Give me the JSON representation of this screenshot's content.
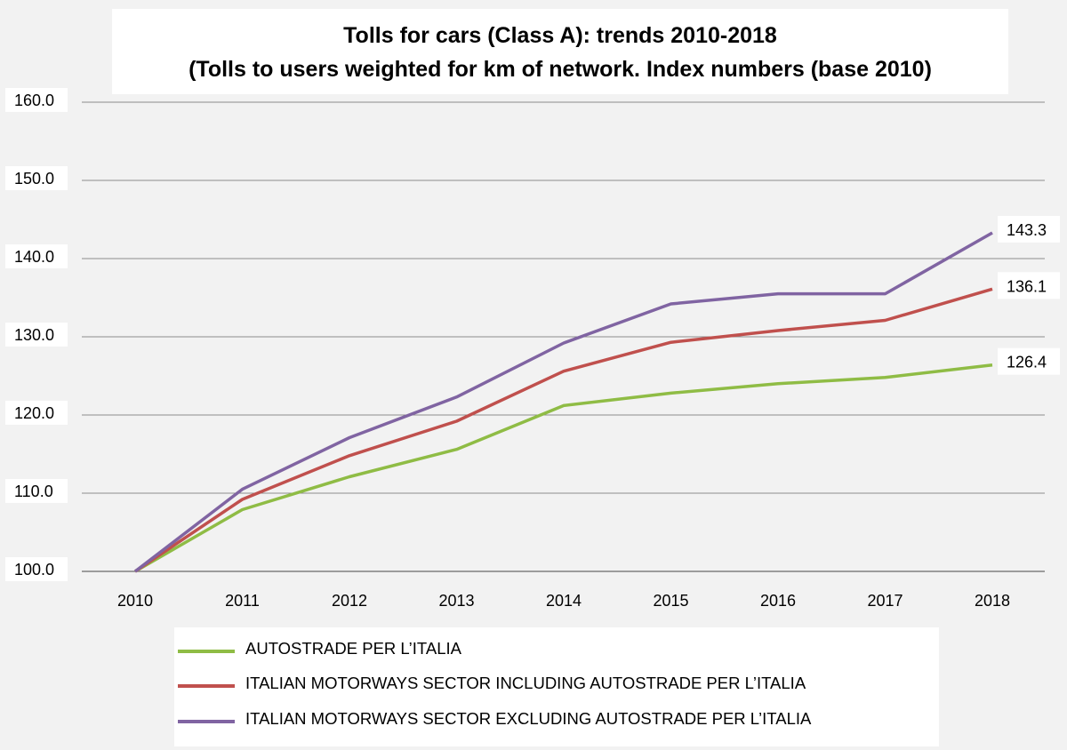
{
  "chart_data": {
    "type": "line",
    "title": "Tolls for cars (Class A): trends 2010-2018",
    "subtitle": "(Tolls to users weighted for km of network. Index numbers (base 2010)",
    "x": [
      "2010",
      "2011",
      "2012",
      "2013",
      "2014",
      "2015",
      "2016",
      "2017",
      "2018"
    ],
    "ylim": [
      100,
      160
    ],
    "yticks": [
      "100.0",
      "110.0",
      "120.0",
      "130.0",
      "140.0",
      "150.0",
      "160.0"
    ],
    "grid": true,
    "legend_position": "bottom",
    "series": [
      {
        "name": "AUTOSTRADE PER L’ITALIA",
        "color": "#8fbc45",
        "values": [
          100.0,
          107.9,
          112.1,
          115.6,
          121.2,
          122.8,
          124.0,
          124.8,
          126.4
        ],
        "end_label": "126.4"
      },
      {
        "name": "ITALIAN MOTORWAYS SECTOR INCLUDING AUTOSTRADE PER L’ITALIA",
        "color": "#c0504d",
        "values": [
          100.0,
          109.2,
          114.8,
          119.2,
          125.6,
          129.3,
          130.8,
          132.1,
          136.1
        ],
        "end_label": "136.1"
      },
      {
        "name": "ITALIAN MOTORWAYS SECTOR EXCLUDING AUTOSTRADE PER L’ITALIA",
        "color": "#8064a2",
        "values": [
          100.0,
          110.5,
          117.1,
          122.3,
          129.2,
          134.2,
          135.5,
          135.5,
          143.3
        ],
        "end_label": "143.3"
      }
    ]
  }
}
